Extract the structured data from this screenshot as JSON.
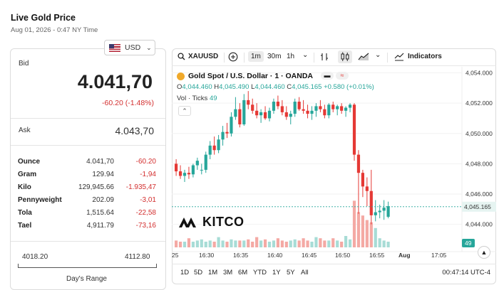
{
  "header": {
    "title": "Live Gold Price",
    "datetime": "Aug 01, 2026 - 0:47 NY Time"
  },
  "currency": {
    "selected": "USD",
    "flag_icon": "us-flag-icon"
  },
  "quote": {
    "bid_label": "Bid",
    "bid_value": "4.041,70",
    "bid_change": "-60.20 (-1.48%)",
    "ask_label": "Ask",
    "ask_value": "4.043,70"
  },
  "units": [
    {
      "name": "Ounce",
      "price": "4.041,70",
      "change": "-60.20"
    },
    {
      "name": "Gram",
      "price": "129.94",
      "change": "-1,94"
    },
    {
      "name": "Kilo",
      "price": "129,945.66",
      "change": "-1.935,47"
    },
    {
      "name": "Pennyweight",
      "price": "202.09",
      "change": "-3,01"
    },
    {
      "name": "Tola",
      "price": "1,515.64",
      "change": "-22,58"
    },
    {
      "name": "Tael",
      "price": "4,911.79",
      "change": "-73,16"
    }
  ],
  "day_range": {
    "low": "4018.20",
    "high": "4112.80",
    "label": "Day's Range"
  },
  "toolbar": {
    "symbol": "XAUUSD",
    "intervals": [
      "1m",
      "30m",
      "1h"
    ],
    "active_interval": "1m",
    "indicators_label": "Indicators"
  },
  "legend": {
    "title": "Gold Spot / U.S. Dollar · 1 · OANDA",
    "badge1": "▬",
    "badge2": "≈",
    "o_label": "O",
    "o": "4,044.460",
    "h_label": "H",
    "h": "4,045.490",
    "l_label": "L",
    "l": "4,044.460",
    "c_label": "C",
    "c": "4,045.165",
    "chg": "+0.580 (+0.01%)",
    "vol_label": "Vol · Ticks",
    "vol_value": "49",
    "collapse_icon": "chevron-up-icon"
  },
  "logo": {
    "text": "KITCO"
  },
  "bottom_bar": {
    "ranges": [
      "1D",
      "5D",
      "1M",
      "3M",
      "6M",
      "YTD",
      "1Y",
      "5Y",
      "All"
    ],
    "timestamp": "00:47:14 UTC-4"
  },
  "colors": {
    "up": "#26a69a",
    "down": "#e53935",
    "up_vol": "#a7dcd6",
    "down_vol": "#f4a9a4",
    "current_price_label": "#e6f4f1"
  },
  "chart_data": {
    "type": "candlestick",
    "y_ticks": [
      "4,054.000",
      "4,052.000",
      "4,050.000",
      "4,048.000",
      "4,046.000",
      "4,044.000"
    ],
    "y_tick_values": [
      4054,
      4052,
      4050,
      4048,
      4046,
      4044
    ],
    "x_ticks": [
      "25",
      "16:30",
      "16:35",
      "16:40",
      "16:45",
      "16:50",
      "16:55",
      "Aug",
      "17:05"
    ],
    "current_price": "4,045.165",
    "current_volume": "49",
    "ylim": [
      4042.2,
      4054.4
    ],
    "candles": [
      [
        4048.0,
        4048.3,
        4047.2,
        4047.5
      ],
      [
        4047.5,
        4047.9,
        4047.0,
        4047.2
      ],
      [
        4047.2,
        4047.6,
        4046.8,
        4047.4
      ],
      [
        4047.4,
        4047.8,
        4047.0,
        4047.3
      ],
      [
        4047.3,
        4048.0,
        4047.1,
        4047.9
      ],
      [
        4047.9,
        4048.4,
        4047.6,
        4048.2
      ],
      [
        4047.6,
        4048.0,
        4047.3,
        4047.6
      ],
      [
        4047.6,
        4048.8,
        4047.4,
        4048.6
      ],
      [
        4048.6,
        4049.5,
        4048.3,
        4049.2
      ],
      [
        4049.2,
        4049.8,
        4048.6,
        4048.9
      ],
      [
        4048.9,
        4049.9,
        4048.7,
        4049.6
      ],
      [
        4049.6,
        4050.5,
        4049.2,
        4050.1
      ],
      [
        4050.1,
        4050.7,
        4049.7,
        4050.0
      ],
      [
        4050.0,
        4051.4,
        4049.8,
        4051.1
      ],
      [
        4051.1,
        4052.4,
        4050.9,
        4051.6
      ],
      [
        4051.6,
        4052.0,
        4050.4,
        4050.6
      ],
      [
        4050.6,
        4052.6,
        4050.5,
        4052.2
      ],
      [
        4052.2,
        4052.8,
        4051.6,
        4051.9
      ],
      [
        4051.9,
        4052.3,
        4051.3,
        4051.5
      ],
      [
        4051.5,
        4052.0,
        4051.0,
        4051.2
      ],
      [
        4051.2,
        4051.6,
        4050.7,
        4051.4
      ],
      [
        4051.4,
        4051.8,
        4050.9,
        4051.0
      ],
      [
        4051.0,
        4051.7,
        4050.8,
        4051.5
      ],
      [
        4051.5,
        4052.3,
        4051.3,
        4052.1
      ],
      [
        4052.1,
        4052.5,
        4051.6,
        4051.8
      ],
      [
        4051.8,
        4052.2,
        4051.2,
        4051.4
      ],
      [
        4051.4,
        4051.8,
        4050.9,
        4051.1
      ],
      [
        4051.1,
        4051.5,
        4050.6,
        4051.3
      ],
      [
        4051.3,
        4052.3,
        4051.1,
        4052.1
      ],
      [
        4052.1,
        4052.4,
        4051.5,
        4051.6
      ],
      [
        4051.6,
        4052.2,
        4051.3,
        4051.5
      ],
      [
        4051.5,
        4051.9,
        4051.0,
        4051.3
      ],
      [
        4051.3,
        4051.8,
        4050.9,
        4051.5
      ],
      [
        4051.5,
        4052.0,
        4051.1,
        4051.8
      ],
      [
        4051.8,
        4052.2,
        4051.4,
        4051.6
      ],
      [
        4051.6,
        4051.9,
        4051.0,
        4051.2
      ],
      [
        4051.2,
        4052.0,
        4051.0,
        4051.9
      ],
      [
        4051.9,
        4052.1,
        4051.4,
        4051.6
      ],
      [
        4051.6,
        4051.9,
        4051.2,
        4051.8
      ],
      [
        4051.8,
        4052.0,
        4051.3,
        4051.5
      ],
      [
        4051.5,
        4051.8,
        4051.1,
        4051.7
      ],
      [
        4051.7,
        4052.0,
        4051.4,
        4051.9
      ],
      [
        4051.9,
        4052.0,
        4048.2,
        4048.6
      ],
      [
        4048.6,
        4048.9,
        4044.7,
        4047.4
      ],
      [
        4047.4,
        4047.6,
        4045.8,
        4046.5
      ],
      [
        4046.5,
        4047.1,
        4045.2,
        4046.2
      ],
      [
        4046.2,
        4047.6,
        4044.0,
        4044.6
      ],
      [
        4044.6,
        4045.6,
        4044.2,
        4044.8
      ],
      [
        4044.8,
        4045.3,
        4044.4,
        4044.9
      ],
      [
        4044.9,
        4045.6,
        4044.3,
        4045.1
      ],
      [
        4044.5,
        4045.5,
        4044.4,
        4045.2
      ]
    ],
    "volume": [
      6,
      5,
      5,
      8,
      5,
      6,
      7,
      5,
      6,
      5,
      9,
      6,
      5,
      7,
      6,
      6,
      6,
      7,
      5,
      9,
      6,
      7,
      5,
      6,
      8,
      6,
      5,
      6,
      7,
      6,
      8,
      6,
      5,
      9,
      8,
      6,
      6,
      8,
      6,
      5,
      10,
      7,
      41,
      31,
      28,
      24,
      22,
      17,
      8,
      6,
      5
    ]
  }
}
